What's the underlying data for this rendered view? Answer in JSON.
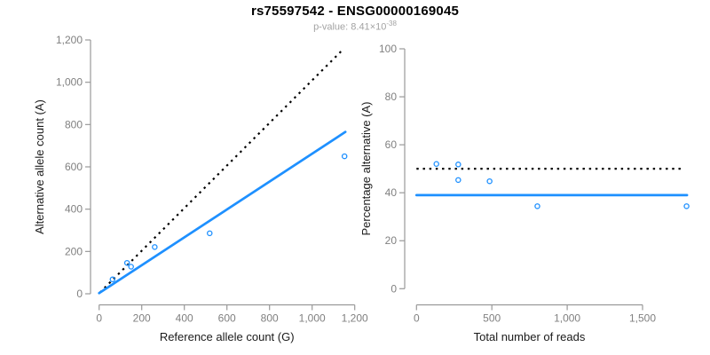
{
  "title": "rs75597542 - ENSG00000169045",
  "subtitle": {
    "label": "p-value: ",
    "mantissa": "8.41",
    "multiplier": "×10",
    "exponent": "-38"
  },
  "colors": {
    "accent": "#1E90FF",
    "dotted_line": "#000000",
    "axis_line": "#999999",
    "tick_label": "#808080",
    "axis_title": "#1a1a1a",
    "title": "#000000",
    "subtitle": "#a3a3a3",
    "background": "#ffffff"
  },
  "chart_data": [
    {
      "type": "scatter",
      "name": "allele-counts-panel",
      "xlabel": "Reference allele count (G)",
      "ylabel": "Alternative allele count (A)",
      "xlim": [
        0,
        1200
      ],
      "ylim": [
        0,
        1200
      ],
      "xticks": [
        0,
        200,
        400,
        600,
        800,
        1000,
        1200
      ],
      "yticks": [
        0,
        200,
        400,
        600,
        800,
        1000,
        1200
      ],
      "grid": false,
      "marker": {
        "shape": "open-circle",
        "color": "#1E90FF",
        "radius": 2.6
      },
      "points": [
        {
          "x": 63,
          "y": 68
        },
        {
          "x": 131,
          "y": 146
        },
        {
          "x": 150,
          "y": 128
        },
        {
          "x": 261,
          "y": 221
        },
        {
          "x": 519,
          "y": 286
        },
        {
          "x": 1152,
          "y": 650
        }
      ],
      "lines": [
        {
          "name": "identity-line",
          "style": "dotted",
          "color": "#000000",
          "x1": 4,
          "y1": 6,
          "x2": 1146,
          "y2": 1156
        },
        {
          "name": "fit-line",
          "style": "solid",
          "color": "#1E90FF",
          "x1": 0,
          "y1": 3,
          "x2": 1156,
          "y2": 765
        }
      ]
    },
    {
      "type": "scatter",
      "name": "percentage-vs-reads-panel",
      "xlabel": "Total number of reads",
      "ylabel": "Percentage alternative (A)",
      "xlim": [
        0,
        1500
      ],
      "ylim": [
        0,
        100
      ],
      "xticks": [
        0,
        500,
        1000,
        1500
      ],
      "yticks": [
        0,
        20,
        40,
        60,
        80,
        100
      ],
      "grid": false,
      "marker": {
        "shape": "open-circle",
        "color": "#1E90FF",
        "radius": 2.6
      },
      "points": [
        {
          "x": 132,
          "y": 52
        },
        {
          "x": 277,
          "y": 51.8
        },
        {
          "x": 277,
          "y": 45.3
        },
        {
          "x": 485,
          "y": 44.8
        },
        {
          "x": 802,
          "y": 34.4
        },
        {
          "x": 1792,
          "y": 34.4
        }
      ],
      "lines": [
        {
          "name": "expected-percentage-line",
          "style": "dotted",
          "color": "#000000",
          "x1": 0,
          "y1": 50,
          "x2": 1760,
          "y2": 50
        },
        {
          "name": "fit-line",
          "style": "solid",
          "color": "#1E90FF",
          "x1": 0,
          "y1": 39,
          "x2": 1795,
          "y2": 39
        }
      ]
    }
  ]
}
